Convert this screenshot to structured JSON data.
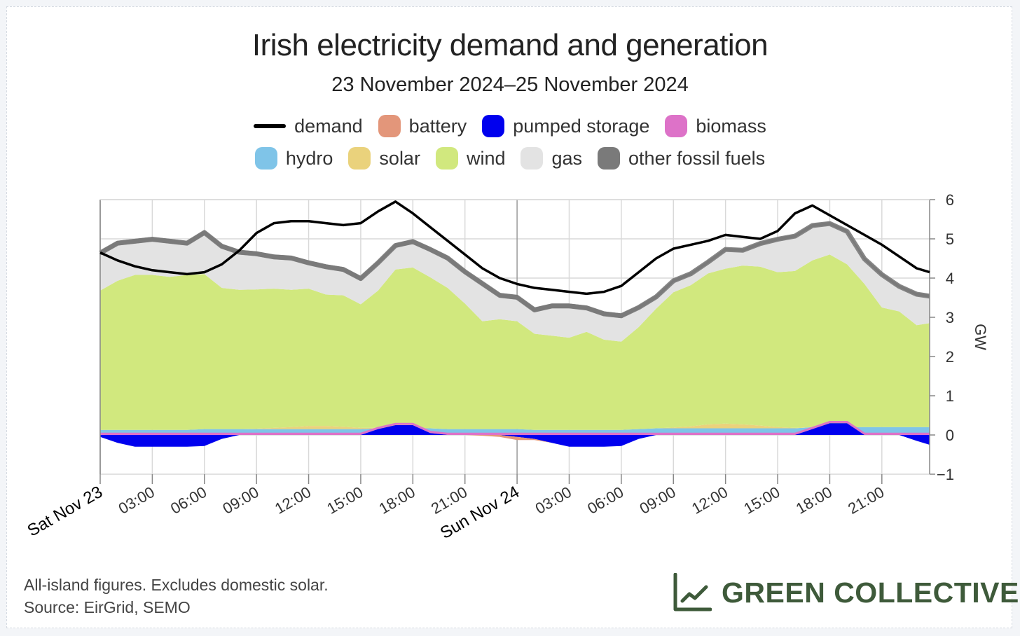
{
  "title": "Irish electricity demand and generation",
  "subtitle": "23 November 2024–25 November 2024",
  "legend": [
    {
      "label": "demand",
      "color": "#000000",
      "kind": "line"
    },
    {
      "label": "battery",
      "color": "#e3967a",
      "kind": "swatch"
    },
    {
      "label": "pumped storage",
      "color": "#0000ee",
      "kind": "swatch"
    },
    {
      "label": "biomass",
      "color": "#dd72c8",
      "kind": "swatch"
    },
    {
      "label": "hydro",
      "color": "#7fc4e8",
      "kind": "swatch"
    },
    {
      "label": "solar",
      "color": "#ead27c",
      "kind": "swatch"
    },
    {
      "label": "wind",
      "color": "#d1e87e",
      "kind": "swatch"
    },
    {
      "label": "gas",
      "color": "#e3e3e3",
      "kind": "swatch"
    },
    {
      "label": "other fossil fuels",
      "color": "#7a7a7a",
      "kind": "swatch"
    }
  ],
  "footnotes": [
    "All-island figures. Excludes domestic solar.",
    "Source: EirGrid, SEMO"
  ],
  "brand": "GREEN COLLECTIVE",
  "chart_data": {
    "type": "area",
    "ylabel": "GW",
    "ylim": [
      -1,
      6
    ],
    "yticks": [
      -1,
      0,
      1,
      2,
      3,
      4,
      5,
      6
    ],
    "xlim": [
      0,
      47.75
    ],
    "xticks": [
      {
        "x": 0,
        "label": "Sat Nov 23",
        "major": true
      },
      {
        "x": 3,
        "label": "03:00",
        "major": false
      },
      {
        "x": 6,
        "label": "06:00",
        "major": false
      },
      {
        "x": 9,
        "label": "09:00",
        "major": false
      },
      {
        "x": 12,
        "label": "12:00",
        "major": false
      },
      {
        "x": 15,
        "label": "15:00",
        "major": false
      },
      {
        "x": 18,
        "label": "18:00",
        "major": false
      },
      {
        "x": 21,
        "label": "21:00",
        "major": false
      },
      {
        "x": 24,
        "label": "Sun Nov 24",
        "major": true
      },
      {
        "x": 27,
        "label": "03:00",
        "major": false
      },
      {
        "x": 30,
        "label": "06:00",
        "major": false
      },
      {
        "x": 33,
        "label": "09:00",
        "major": false
      },
      {
        "x": 36,
        "label": "12:00",
        "major": false
      },
      {
        "x": 39,
        "label": "15:00",
        "major": false
      },
      {
        "x": 42,
        "label": "18:00",
        "major": false
      },
      {
        "x": 45,
        "label": "21:00",
        "major": false
      }
    ],
    "grid": true,
    "x": [
      0,
      1,
      2,
      3,
      4,
      5,
      6,
      7,
      8,
      9,
      10,
      11,
      12,
      13,
      14,
      15,
      16,
      17,
      18,
      19,
      20,
      21,
      22,
      23,
      24,
      25,
      26,
      27,
      28,
      29,
      30,
      31,
      32,
      33,
      34,
      35,
      36,
      37,
      38,
      39,
      40,
      41,
      42,
      43,
      44,
      45,
      46,
      47,
      47.75
    ],
    "series": [
      {
        "name": "pumped storage",
        "color": "#0000ee",
        "values": [
          -0.05,
          -0.2,
          -0.3,
          -0.3,
          -0.3,
          -0.3,
          -0.28,
          -0.1,
          0.0,
          0.0,
          0.0,
          0.0,
          0.0,
          0.0,
          0.0,
          0.0,
          0.15,
          0.25,
          0.25,
          0.05,
          0.0,
          0.0,
          0.0,
          0.0,
          -0.05,
          -0.1,
          -0.2,
          -0.3,
          -0.3,
          -0.3,
          -0.28,
          -0.1,
          0.0,
          0.0,
          0.0,
          0.0,
          0.0,
          0.0,
          0.0,
          0.0,
          0.0,
          0.15,
          0.3,
          0.3,
          0.0,
          0.0,
          0.0,
          -0.15,
          -0.25
        ]
      },
      {
        "name": "battery",
        "color": "#e3967a",
        "values": [
          0.0,
          0.0,
          0.0,
          0.0,
          0.0,
          0.0,
          0.0,
          0.0,
          0.0,
          0.0,
          0.0,
          0.0,
          0.0,
          0.0,
          0.0,
          0.0,
          0.0,
          0.0,
          0.0,
          0.0,
          0.0,
          0.0,
          -0.02,
          -0.05,
          -0.08,
          -0.03,
          0.0,
          0.0,
          0.0,
          0.0,
          0.0,
          0.0,
          0.0,
          0.0,
          0.0,
          0.0,
          0.0,
          0.0,
          0.0,
          0.0,
          0.0,
          0.0,
          0.0,
          0.0,
          0.0,
          0.0,
          0.0,
          0.0,
          0.0
        ]
      },
      {
        "name": "biomass",
        "color": "#dd72c8",
        "values": [
          0.05,
          0.05,
          0.05,
          0.05,
          0.05,
          0.05,
          0.05,
          0.05,
          0.05,
          0.05,
          0.05,
          0.05,
          0.05,
          0.05,
          0.05,
          0.05,
          0.05,
          0.05,
          0.05,
          0.05,
          0.05,
          0.05,
          0.05,
          0.05,
          0.05,
          0.05,
          0.05,
          0.05,
          0.05,
          0.05,
          0.05,
          0.05,
          0.05,
          0.05,
          0.05,
          0.05,
          0.05,
          0.05,
          0.05,
          0.05,
          0.05,
          0.05,
          0.05,
          0.05,
          0.05,
          0.05,
          0.05,
          0.05,
          0.05
        ]
      },
      {
        "name": "hydro",
        "color": "#7fc4e8",
        "values": [
          0.08,
          0.08,
          0.08,
          0.08,
          0.08,
          0.08,
          0.1,
          0.1,
          0.1,
          0.1,
          0.1,
          0.1,
          0.1,
          0.1,
          0.1,
          0.1,
          0.12,
          0.12,
          0.12,
          0.12,
          0.1,
          0.1,
          0.1,
          0.1,
          0.1,
          0.08,
          0.08,
          0.08,
          0.08,
          0.08,
          0.08,
          0.1,
          0.12,
          0.12,
          0.12,
          0.12,
          0.12,
          0.12,
          0.12,
          0.12,
          0.12,
          0.15,
          0.15,
          0.15,
          0.15,
          0.15,
          0.15,
          0.15,
          0.15
        ]
      },
      {
        "name": "solar",
        "color": "#ead27c",
        "values": [
          0.0,
          0.0,
          0.0,
          0.0,
          0.0,
          0.0,
          0.0,
          0.0,
          0.0,
          0.01,
          0.03,
          0.05,
          0.08,
          0.08,
          0.06,
          0.03,
          0.01,
          0.0,
          0.0,
          0.0,
          0.0,
          0.0,
          0.0,
          0.0,
          0.0,
          0.0,
          0.0,
          0.0,
          0.0,
          0.0,
          0.0,
          0.0,
          0.0,
          0.02,
          0.05,
          0.1,
          0.12,
          0.1,
          0.07,
          0.03,
          0.01,
          0.0,
          0.0,
          0.0,
          0.0,
          0.0,
          0.0,
          0.0,
          0.0
        ]
      },
      {
        "name": "wind",
        "color": "#d1e87e",
        "values": [
          3.55,
          3.8,
          3.95,
          3.95,
          3.9,
          3.95,
          3.95,
          3.6,
          3.55,
          3.55,
          3.55,
          3.5,
          3.5,
          3.35,
          3.35,
          3.15,
          3.5,
          4.05,
          4.1,
          3.85,
          3.6,
          3.2,
          2.75,
          2.8,
          2.75,
          2.45,
          2.4,
          2.35,
          2.5,
          2.3,
          2.25,
          2.6,
          3.05,
          3.45,
          3.6,
          3.85,
          3.95,
          4.05,
          4.05,
          3.95,
          4.0,
          4.25,
          4.4,
          4.15,
          3.65,
          3.05,
          2.95,
          2.6,
          2.65
        ]
      },
      {
        "name": "gas",
        "color": "#e3e3e3",
        "values": [
          0.9,
          0.9,
          0.8,
          0.85,
          0.85,
          0.75,
          1.0,
          1.0,
          0.9,
          0.85,
          0.75,
          0.75,
          0.6,
          0.65,
          0.6,
          0.6,
          0.65,
          0.55,
          0.6,
          0.65,
          0.7,
          0.75,
          0.9,
          0.55,
          0.55,
          0.55,
          0.7,
          0.75,
          0.55,
          0.6,
          0.6,
          0.45,
          0.25,
          0.25,
          0.25,
          0.25,
          0.45,
          0.35,
          0.55,
          0.8,
          0.85,
          0.85,
          0.75,
          0.8,
          0.6,
          0.8,
          0.6,
          0.75,
          0.65
        ]
      },
      {
        "name": "other fossil fuels",
        "color": "#7a7a7a",
        "values": [
          0.12,
          0.12,
          0.12,
          0.12,
          0.12,
          0.12,
          0.12,
          0.12,
          0.12,
          0.12,
          0.12,
          0.12,
          0.12,
          0.12,
          0.12,
          0.12,
          0.12,
          0.12,
          0.12,
          0.12,
          0.12,
          0.12,
          0.12,
          0.12,
          0.12,
          0.12,
          0.12,
          0.12,
          0.12,
          0.12,
          0.12,
          0.1,
          0.1,
          0.08,
          0.08,
          0.08,
          0.08,
          0.08,
          0.08,
          0.08,
          0.08,
          0.08,
          0.08,
          0.08,
          0.08,
          0.08,
          0.08,
          0.08,
          0.08
        ]
      },
      {
        "name": "demand",
        "color": "#000000",
        "kind": "line",
        "values": [
          4.65,
          4.45,
          4.3,
          4.2,
          4.15,
          4.1,
          4.15,
          4.35,
          4.7,
          5.15,
          5.4,
          5.45,
          5.45,
          5.4,
          5.35,
          5.4,
          5.7,
          5.95,
          5.65,
          5.3,
          4.95,
          4.6,
          4.25,
          4.0,
          3.85,
          3.75,
          3.7,
          3.65,
          3.6,
          3.65,
          3.8,
          4.15,
          4.5,
          4.75,
          4.85,
          4.95,
          5.1,
          5.05,
          5.0,
          5.2,
          5.65,
          5.85,
          5.6,
          5.35,
          5.1,
          4.85,
          4.55,
          4.25,
          4.15
        ]
      }
    ]
  }
}
